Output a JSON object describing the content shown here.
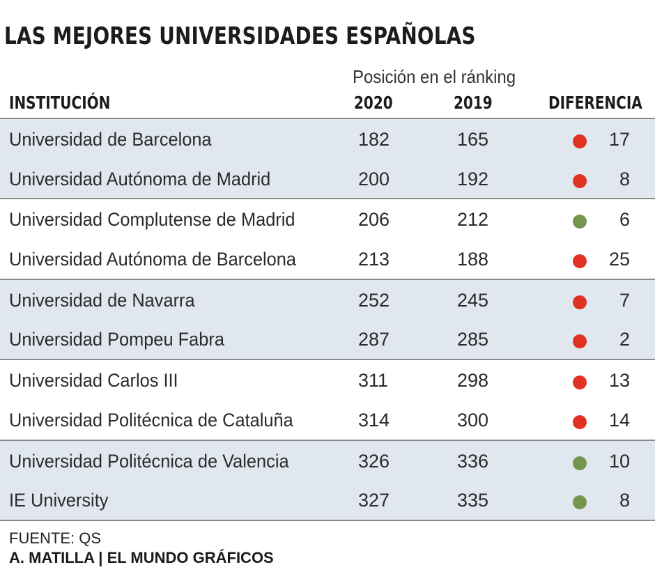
{
  "title": "LAS MEJORES UNIVERSIDADES ESPAÑOLAS",
  "subtitle": "Posición en el ránking",
  "colors": {
    "worse": "#e03123",
    "better": "#76964f",
    "shaded_row": "#e1e7ee"
  },
  "chart_data": {
    "type": "table",
    "title": "LAS MEJORES UNIVERSIDADES ESPAÑOLAS",
    "subtitle": "Posición en el ránking",
    "columns": [
      "INSTITUCIÓN",
      "2020",
      "2019",
      "DIFERENCIA"
    ],
    "rows": [
      {
        "institution": "Universidad de Barcelona",
        "y2020": "182",
        "y2019": "165",
        "diff": "17",
        "trend": "worse"
      },
      {
        "institution": "Universidad Autónoma de Madrid",
        "y2020": "200",
        "y2019": "192",
        "diff": "8",
        "trend": "worse"
      },
      {
        "institution": "Universidad Complutense de Madrid",
        "y2020": "206",
        "y2019": "212",
        "diff": "6",
        "trend": "better"
      },
      {
        "institution": "Universidad Autónoma de Barcelona",
        "y2020": "213",
        "y2019": "188",
        "diff": "25",
        "trend": "worse"
      },
      {
        "institution": "Universidad de Navarra",
        "y2020": "252",
        "y2019": "245",
        "diff": "7",
        "trend": "worse"
      },
      {
        "institution": "Universidad Pompeu Fabra",
        "y2020": "287",
        "y2019": "285",
        "diff": "2",
        "trend": "worse"
      },
      {
        "institution": "Universidad Carlos III",
        "y2020": "311",
        "y2019": "298",
        "diff": "13",
        "trend": "worse"
      },
      {
        "institution": "Universidad Politécnica de Cataluña",
        "y2020": "314",
        "y2019": "300",
        "diff": "14",
        "trend": "worse"
      },
      {
        "institution": "Universidad Politécnica de Valencia",
        "y2020": "326",
        "y2019": "336",
        "diff": "10",
        "trend": "better"
      },
      {
        "institution": "IE University",
        "y2020": "327",
        "y2019": "335",
        "diff": "8",
        "trend": "better"
      }
    ]
  },
  "footer": {
    "source": "FUENTE: QS",
    "credit": "A. MATILLA | EL MUNDO GRÁFICOS"
  }
}
